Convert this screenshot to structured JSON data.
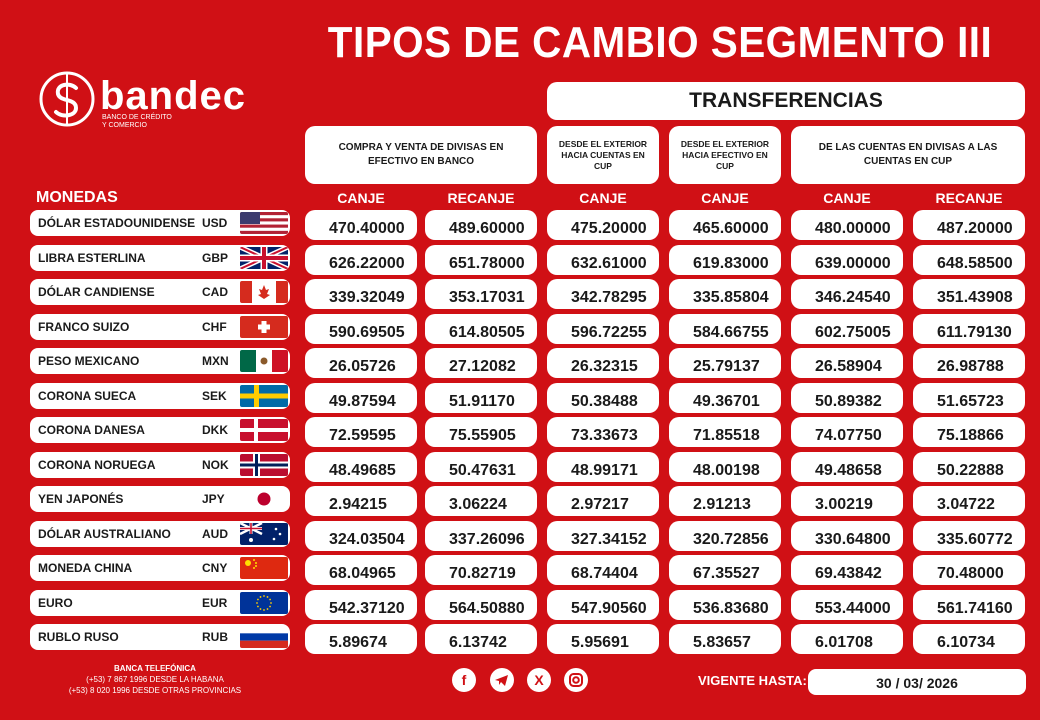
{
  "title": "TIPOS DE CAMBIO SEGMENTO III",
  "logo": {
    "brand": "bandec",
    "tagline_1": "BANCO DE CRÉDITO",
    "tagline_2": "Y COMERCIO"
  },
  "section_transfer": "TRANSFERENCIAS",
  "headers": {
    "efectivo": "COMPRA Y VENTA DE DIVISAS EN EFECTIVO EN BANCO",
    "ext_cuentas": "DESDE EL EXTERIOR HACIA CUENTAS EN CUP",
    "ext_efectivo": "DESDE EL EXTERIOR HACIA EFECTIVO EN CUP",
    "cuentas_divisas": "DE LAS CUENTAS EN DIVISAS A LAS CUENTAS EN CUP"
  },
  "monedas_label": "MONEDAS",
  "columns": [
    "CANJE",
    "RECANJE",
    "CANJE",
    "CANJE",
    "CANJE",
    "RECANJE"
  ],
  "rows": [
    {
      "name": "DÓLAR ESTADOUNIDENSE",
      "code": "USD",
      "flag": "usa-flag",
      "values": [
        "470.40000",
        "489.60000",
        "475.20000",
        "465.60000",
        "480.00000",
        "487.20000"
      ]
    },
    {
      "name": "LIBRA ESTERLINA",
      "code": "GBP",
      "flag": "uk-flag",
      "values": [
        "626.22000",
        "651.78000",
        "632.61000",
        "619.83000",
        "639.00000",
        "648.58500"
      ]
    },
    {
      "name": "DÓLAR CANDIENSE",
      "code": "CAD",
      "flag": "canada-flag",
      "values": [
        "339.32049",
        "353.17031",
        "342.78295",
        "335.85804",
        "346.24540",
        "351.43908"
      ]
    },
    {
      "name": "FRANCO SUIZO",
      "code": "CHF",
      "flag": "swiss-flag",
      "values": [
        "590.69505",
        "614.80505",
        "596.72255",
        "584.66755",
        "602.75005",
        "611.79130"
      ]
    },
    {
      "name": "PESO MEXICANO",
      "code": "MXN",
      "flag": "mexico-flag",
      "values": [
        "26.05726",
        "27.12082",
        "26.32315",
        "25.79137",
        "26.58904",
        "26.98788"
      ]
    },
    {
      "name": "CORONA SUECA",
      "code": "SEK",
      "flag": "sweden-flag",
      "values": [
        "49.87594",
        "51.91170",
        "50.38488",
        "49.36701",
        "50.89382",
        "51.65723"
      ]
    },
    {
      "name": "CORONA DANESA",
      "code": "DKK",
      "flag": "denmark-flag",
      "values": [
        "72.59595",
        "75.55905",
        "73.33673",
        "71.85518",
        "74.07750",
        "75.18866"
      ]
    },
    {
      "name": "CORONA NORUEGA",
      "code": "NOK",
      "flag": "norway-flag",
      "values": [
        "48.49685",
        "50.47631",
        "48.99171",
        "48.00198",
        "49.48658",
        "50.22888"
      ]
    },
    {
      "name": "YEN JAPONÉS",
      "code": "JPY",
      "flag": "japan-flag",
      "values": [
        "2.94215",
        "3.06224",
        "2.97217",
        "2.91213",
        "3.00219",
        "3.04722"
      ]
    },
    {
      "name": "DÓLAR AUSTRALIANO",
      "code": "AUD",
      "flag": "australia-flag",
      "values": [
        "324.03504",
        "337.26096",
        "327.34152",
        "320.72856",
        "330.64800",
        "335.60772"
      ]
    },
    {
      "name": "MONEDA CHINA",
      "code": "CNY",
      "flag": "china-flag",
      "values": [
        "68.04965",
        "70.82719",
        "68.74404",
        "67.35527",
        "69.43842",
        "70.48000"
      ]
    },
    {
      "name": "EURO",
      "code": "EUR",
      "flag": "eu-flag",
      "values": [
        "542.37120",
        "564.50880",
        "547.90560",
        "536.83680",
        "553.44000",
        "561.74160"
      ]
    },
    {
      "name": "RUBLO RUSO",
      "code": "RUB",
      "flag": "russia-flag",
      "values": [
        "5.89674",
        "6.13742",
        "5.95691",
        "5.83657",
        "6.01708",
        "6.10734"
      ]
    }
  ],
  "footer": {
    "banca": "BANCA TELEFÓNICA",
    "phone_1": "(+53) 7 867 1996 DESDE LA HABANA",
    "phone_2": "(+53) 8 020 1996 DESDE OTRAS PROVINCIAS",
    "social": [
      "facebook-icon",
      "telegram-icon",
      "x-icon",
      "instagram-icon"
    ],
    "vigente_label": "VIGENTE HASTA:",
    "vigente_date": "30 / 03/ 2026"
  },
  "colors": {
    "background": "#d01015",
    "pill": "#ffffff",
    "text_dark": "#1a1a1a"
  }
}
